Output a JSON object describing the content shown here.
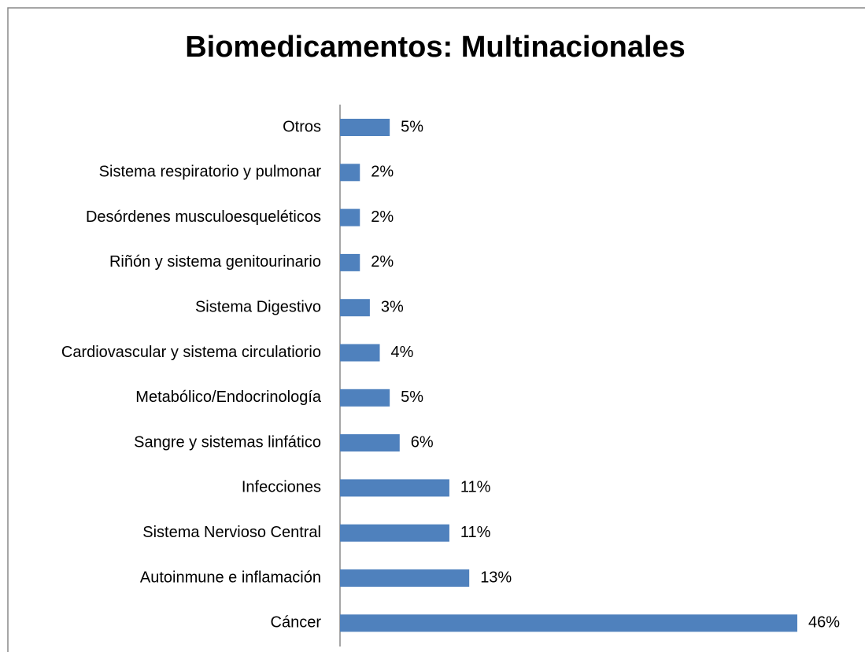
{
  "chart_data": {
    "type": "bar",
    "orientation": "horizontal",
    "title": "Biomedicamentos: Multinacionales",
    "categories": [
      "Otros",
      "Sistema respiratorio y pulmonar",
      "Desórdenes musculoesqueléticos",
      "Riñón y sistema genitourinario",
      "Sistema Digestivo",
      "Cardiovascular y sistema circulatiorio",
      "Metabólico/Endocrinología",
      "Sangre y sistemas linfático",
      "Infecciones",
      "Sistema Nervioso Central",
      "Autoinmune e inflamación",
      "Cáncer"
    ],
    "values": [
      5,
      2,
      2,
      2,
      3,
      4,
      5,
      6,
      11,
      11,
      13,
      46
    ],
    "value_labels": [
      "5%",
      "2%",
      "2%",
      "2%",
      "3%",
      "4%",
      "5%",
      "6%",
      "11%",
      "11%",
      "13%",
      "46%"
    ],
    "color": "#4f81bd"
  }
}
